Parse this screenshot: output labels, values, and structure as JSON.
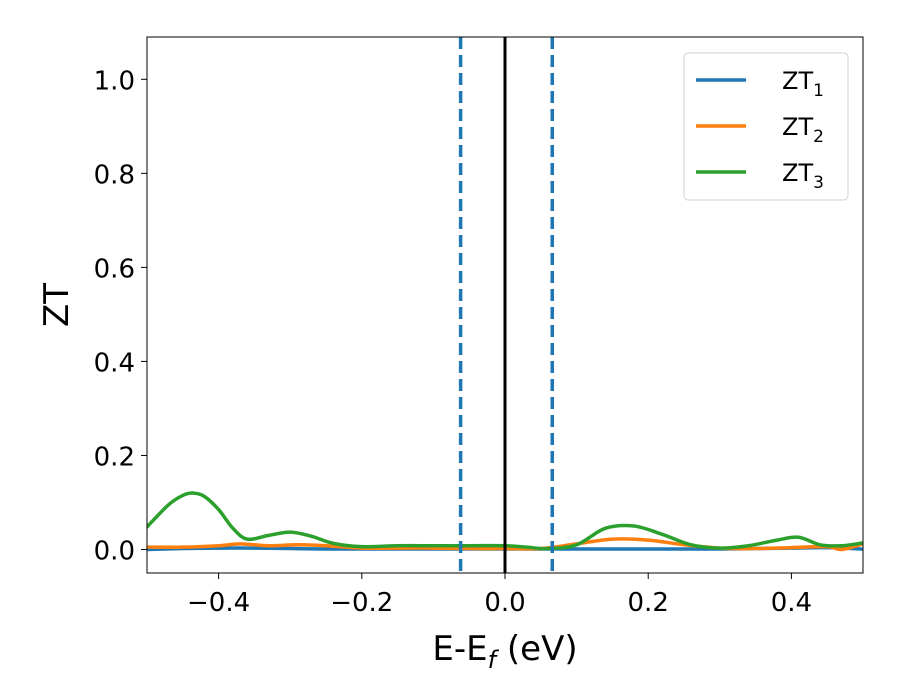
{
  "chart_data": {
    "type": "line",
    "xlabel": "E-E",
    "xlabel_sub": "f",
    "xlabel_unit": " (eV)",
    "ylabel": "ZT",
    "xlim": [
      -0.5,
      0.5
    ],
    "ylim": [
      -0.05,
      1.09
    ],
    "xticks": [
      -0.4,
      -0.2,
      0.0,
      0.2,
      0.4
    ],
    "xtick_labels": [
      "−0.4",
      "−0.2",
      "0.0",
      "0.2",
      "0.4"
    ],
    "yticks": [
      0.0,
      0.2,
      0.4,
      0.6,
      0.8,
      1.0
    ],
    "ytick_labels": [
      "0.0",
      "0.2",
      "0.4",
      "0.6",
      "0.8",
      "1.0"
    ],
    "legend_position": "top-right",
    "grid": false,
    "vlines": [
      {
        "x": 0.0,
        "style": "solid",
        "color": "#000000"
      },
      {
        "x": -0.062,
        "style": "dashed",
        "color": "#1f77b4"
      },
      {
        "x": 0.066,
        "style": "dashed",
        "color": "#1f77b4"
      }
    ],
    "series": [
      {
        "name": "ZT",
        "name_sub": "1",
        "color": "#1f77b4",
        "x": [
          -0.5,
          -0.45,
          -0.4,
          -0.35,
          -0.3,
          -0.25,
          -0.2,
          -0.15,
          -0.1,
          -0.05,
          0.0,
          0.05,
          0.1,
          0.15,
          0.2,
          0.25,
          0.3,
          0.35,
          0.4,
          0.45,
          0.5
        ],
        "y": [
          0.0,
          0.002,
          0.003,
          0.003,
          0.002,
          0.001,
          0.001,
          0.001,
          0.001,
          0.001,
          0.001,
          0.001,
          0.001,
          0.001,
          0.001,
          0.001,
          0.001,
          0.002,
          0.003,
          0.004,
          0.001
        ]
      },
      {
        "name": "ZT",
        "name_sub": "2",
        "color": "#ff7f0e",
        "x": [
          -0.5,
          -0.45,
          -0.4,
          -0.37,
          -0.33,
          -0.29,
          -0.25,
          -0.2,
          -0.15,
          -0.1,
          -0.05,
          0.0,
          0.05,
          0.1,
          0.15,
          0.2,
          0.25,
          0.3,
          0.35,
          0.4,
          0.45,
          0.47,
          0.5
        ],
        "y": [
          0.005,
          0.005,
          0.008,
          0.012,
          0.008,
          0.01,
          0.008,
          0.003,
          0.003,
          0.003,
          0.002,
          0.002,
          0.002,
          0.012,
          0.022,
          0.02,
          0.01,
          0.003,
          0.002,
          0.004,
          0.006,
          0.0,
          0.012
        ]
      },
      {
        "name": "ZT",
        "name_sub": "3",
        "color": "#2ca02c",
        "x": [
          -0.5,
          -0.47,
          -0.45,
          -0.435,
          -0.42,
          -0.4,
          -0.38,
          -0.36,
          -0.33,
          -0.3,
          -0.27,
          -0.24,
          -0.2,
          -0.15,
          -0.1,
          -0.05,
          0.0,
          0.03,
          0.06,
          0.1,
          0.14,
          0.18,
          0.22,
          0.26,
          0.3,
          0.34,
          0.38,
          0.41,
          0.44,
          0.47,
          0.5
        ],
        "y": [
          0.048,
          0.095,
          0.115,
          0.12,
          0.113,
          0.085,
          0.045,
          0.022,
          0.03,
          0.037,
          0.028,
          0.013,
          0.006,
          0.008,
          0.008,
          0.008,
          0.008,
          0.005,
          0.002,
          0.01,
          0.045,
          0.05,
          0.032,
          0.01,
          0.003,
          0.008,
          0.02,
          0.026,
          0.01,
          0.008,
          0.014
        ]
      }
    ]
  }
}
